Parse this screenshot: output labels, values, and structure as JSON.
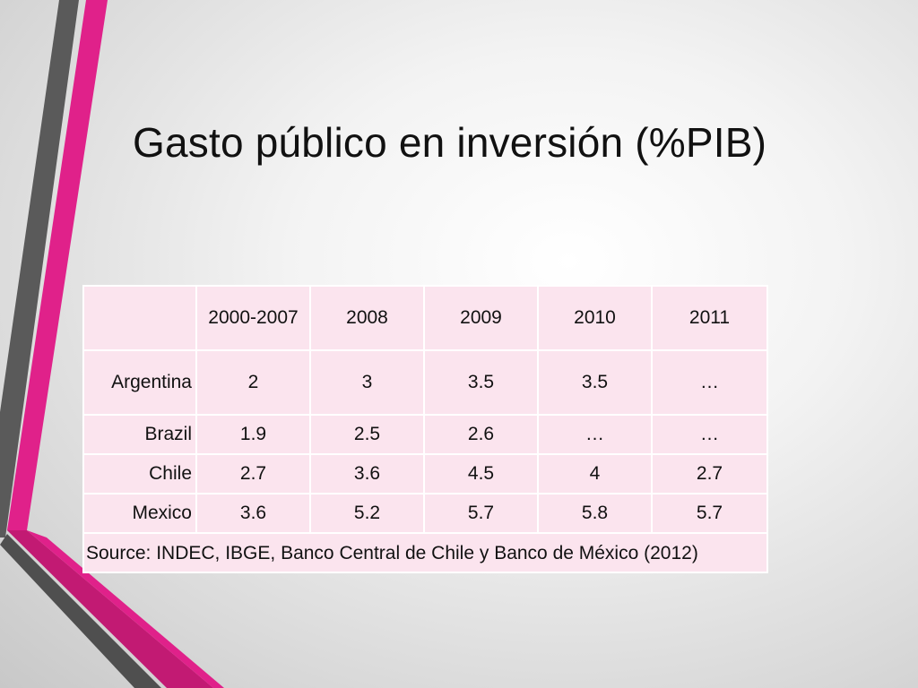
{
  "slide": {
    "title": "Gasto público en inversión (%PIB)",
    "accent_color": "#e0218a",
    "stripe_color": "#555555"
  },
  "table": {
    "corner": "",
    "columns": [
      "2000-2007",
      "2008",
      "2009",
      "2010",
      "2011"
    ],
    "rows": [
      {
        "country": "Argentina",
        "values": [
          "2",
          "3",
          "3.5",
          "3.5",
          "…"
        ]
      },
      {
        "country": "Brazil",
        "values": [
          "1.9",
          "2.5",
          "2.6",
          "…",
          "…"
        ]
      },
      {
        "country": "Chile",
        "values": [
          "2.7",
          "3.6",
          "4.5",
          "4",
          "2.7"
        ]
      },
      {
        "country": "Mexico",
        "values": [
          "3.6",
          "5.2",
          "5.7",
          "5.8",
          "5.7"
        ]
      }
    ],
    "source": "Source: INDEC, IBGE, Banco Central de Chile y  Banco de México (2012)"
  }
}
